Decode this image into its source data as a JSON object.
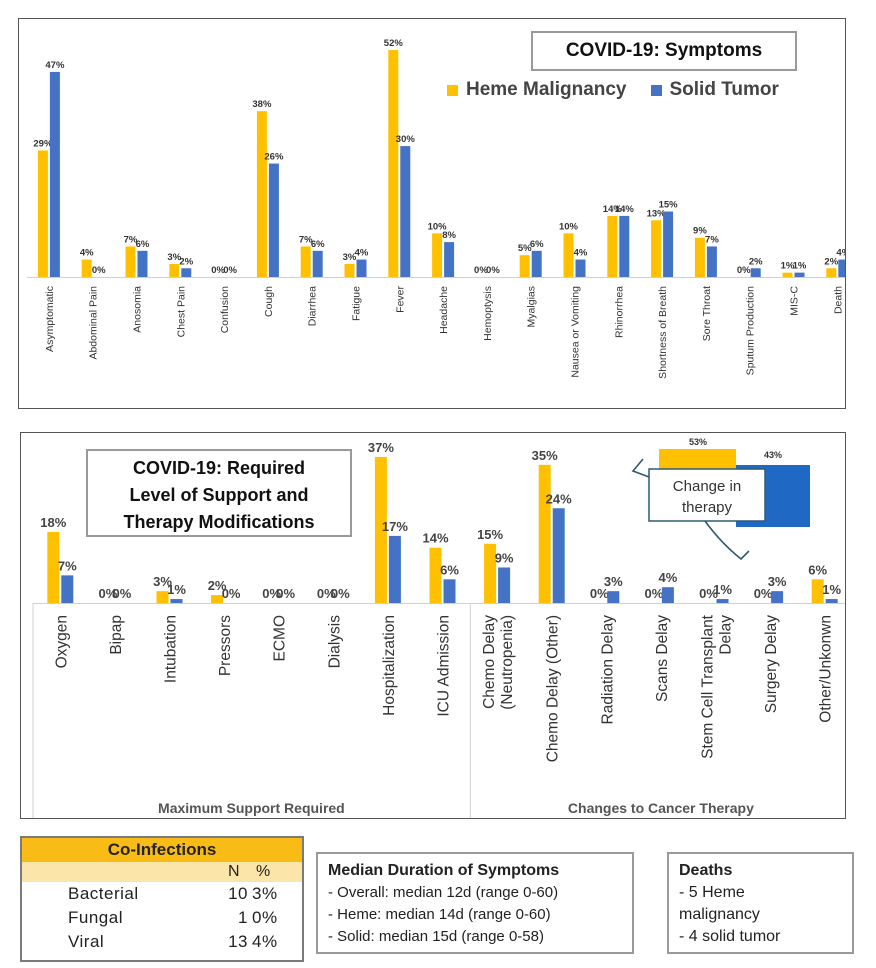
{
  "colors": {
    "heme": "#FFC000",
    "solid": "#4472C4",
    "callout_blue": "#1f68c4",
    "coinf_header": "#F9BC16",
    "coinf_sub": "#FCE5A8"
  },
  "chart_data": [
    {
      "type": "bar",
      "title": "COVID-19: Symptoms",
      "ylim": [
        0,
        55
      ],
      "categories": [
        "Asymptomatic",
        "Abdominal Pain",
        "Anosomia",
        "Chest Pain",
        "Confusion",
        "Cough",
        "Diarrhea",
        "Fatigue",
        "Fever",
        "Headache",
        "Hemoptysis",
        "Myalgias",
        "Nausea or Vomiting",
        "Rhinorrhea",
        "Shortness of Breath",
        "Sore Throat",
        "Sputum Production",
        "MIS-C",
        "Death"
      ],
      "series": [
        {
          "name": "Heme Malignancy",
          "values": [
            29,
            4,
            7,
            3,
            0,
            38,
            7,
            3,
            52,
            10,
            0,
            5,
            10,
            14,
            13,
            9,
            0,
            1,
            2
          ],
          "labels": [
            "29%",
            "4%",
            "7%",
            "3%",
            "0%",
            "38%",
            "7%",
            "3%",
            "52%",
            "10%",
            "0%",
            "5%",
            "10%",
            "14%",
            "13%",
            "9%",
            "0%",
            "1%",
            "2%"
          ]
        },
        {
          "name": "Solid Tumor",
          "values": [
            47,
            0,
            6,
            2,
            0,
            26,
            6,
            4,
            30,
            8,
            0,
            6,
            4,
            14,
            15,
            7,
            2,
            1,
            4
          ],
          "labels": [
            "47%",
            "0%",
            "6%",
            "2%",
            "0%",
            "26%",
            "6%",
            "4%",
            "30%",
            "8%",
            "0%",
            "6%",
            "4%",
            "14%",
            "15%",
            "7%",
            "2%",
            "1%",
            "4%"
          ]
        }
      ]
    },
    {
      "type": "bar",
      "title": "COVID-19: Required Level of Support and Therapy Modifications",
      "title_lines": [
        "COVID-19: Required",
        "Level of Support and",
        "Therapy Modifications"
      ],
      "ylim": [
        0,
        38
      ],
      "categories": [
        "Oxygen",
        "Bipap",
        "Intubation",
        "Pressors",
        "ECMO",
        "Dialysis",
        "Hospitalization",
        "ICU Admission",
        "Chemo Delay (Neutropenia)",
        "Chemo Delay (Other)",
        "Radiation Delay",
        "Scans Delay",
        "Stem Cell Transplant Delay",
        "Surgery Delay",
        "Other/Unkonwn"
      ],
      "category_lines": [
        [
          "Oxygen"
        ],
        [
          "Bipap"
        ],
        [
          "Intubation"
        ],
        [
          "Pressors"
        ],
        [
          "ECMO"
        ],
        [
          "Dialysis"
        ],
        [
          "Hospitalization"
        ],
        [
          "ICU Admission"
        ],
        [
          "Chemo Delay",
          "(Neutropenia)"
        ],
        [
          "Chemo Delay (Other)"
        ],
        [
          "Radiation Delay"
        ],
        [
          "Scans Delay"
        ],
        [
          "Stem Cell Transplant",
          "Delay"
        ],
        [
          "Surgery Delay"
        ],
        [
          "Other/Unkonwn"
        ]
      ],
      "groups": [
        "Maximum Support Required",
        "Changes to Cancer Therapy"
      ],
      "series": [
        {
          "name": "Heme Malignancy",
          "values": [
            18,
            0,
            3,
            2,
            0,
            0,
            37,
            14,
            15,
            35,
            0,
            0,
            0,
            0,
            6
          ],
          "labels": [
            "18%",
            "0%",
            "3%",
            "2%",
            "0%",
            "0%",
            "37%",
            "14%",
            "15%",
            "35%",
            "0%",
            "0%",
            "0%",
            "0%",
            "6%"
          ]
        },
        {
          "name": "Solid Tumor",
          "values": [
            7,
            0,
            1,
            0,
            0,
            0,
            17,
            6,
            9,
            24,
            3,
            4,
            1,
            3,
            1
          ],
          "labels": [
            "7%",
            "0%",
            "1%",
            "0%",
            "0%",
            "0%",
            "17%",
            "6%",
            "9%",
            "24%",
            "3%",
            "4%",
            "1%",
            "3%",
            "1%"
          ]
        }
      ],
      "callout": {
        "text_lines": [
          "Change in",
          "therapy"
        ],
        "heme_label": "53%",
        "solid_label": "43%"
      }
    }
  ],
  "legend": {
    "heme": "Heme Malignancy",
    "solid": "Solid Tumor"
  },
  "coinfections": {
    "title": "Co-Infections",
    "col_n": "N",
    "col_pct": "%",
    "rows": [
      {
        "name": "Bacterial",
        "n": "10",
        "pct": "3%"
      },
      {
        "name": "Fungal",
        "n": "1",
        "pct": "0%"
      },
      {
        "name": "Viral",
        "n": "13",
        "pct": "4%"
      }
    ]
  },
  "median_duration": {
    "title": "Median Duration of Symptoms",
    "lines": [
      "- Overall: median 12d (range 0-60)",
      "- Heme: median 14d (range 0-60)",
      "- Solid: median 15d (range 0-58)"
    ]
  },
  "deaths": {
    "title": "Deaths",
    "lines": [
      "- 5 Heme",
      "malignancy",
      "- 4 solid tumor"
    ]
  }
}
